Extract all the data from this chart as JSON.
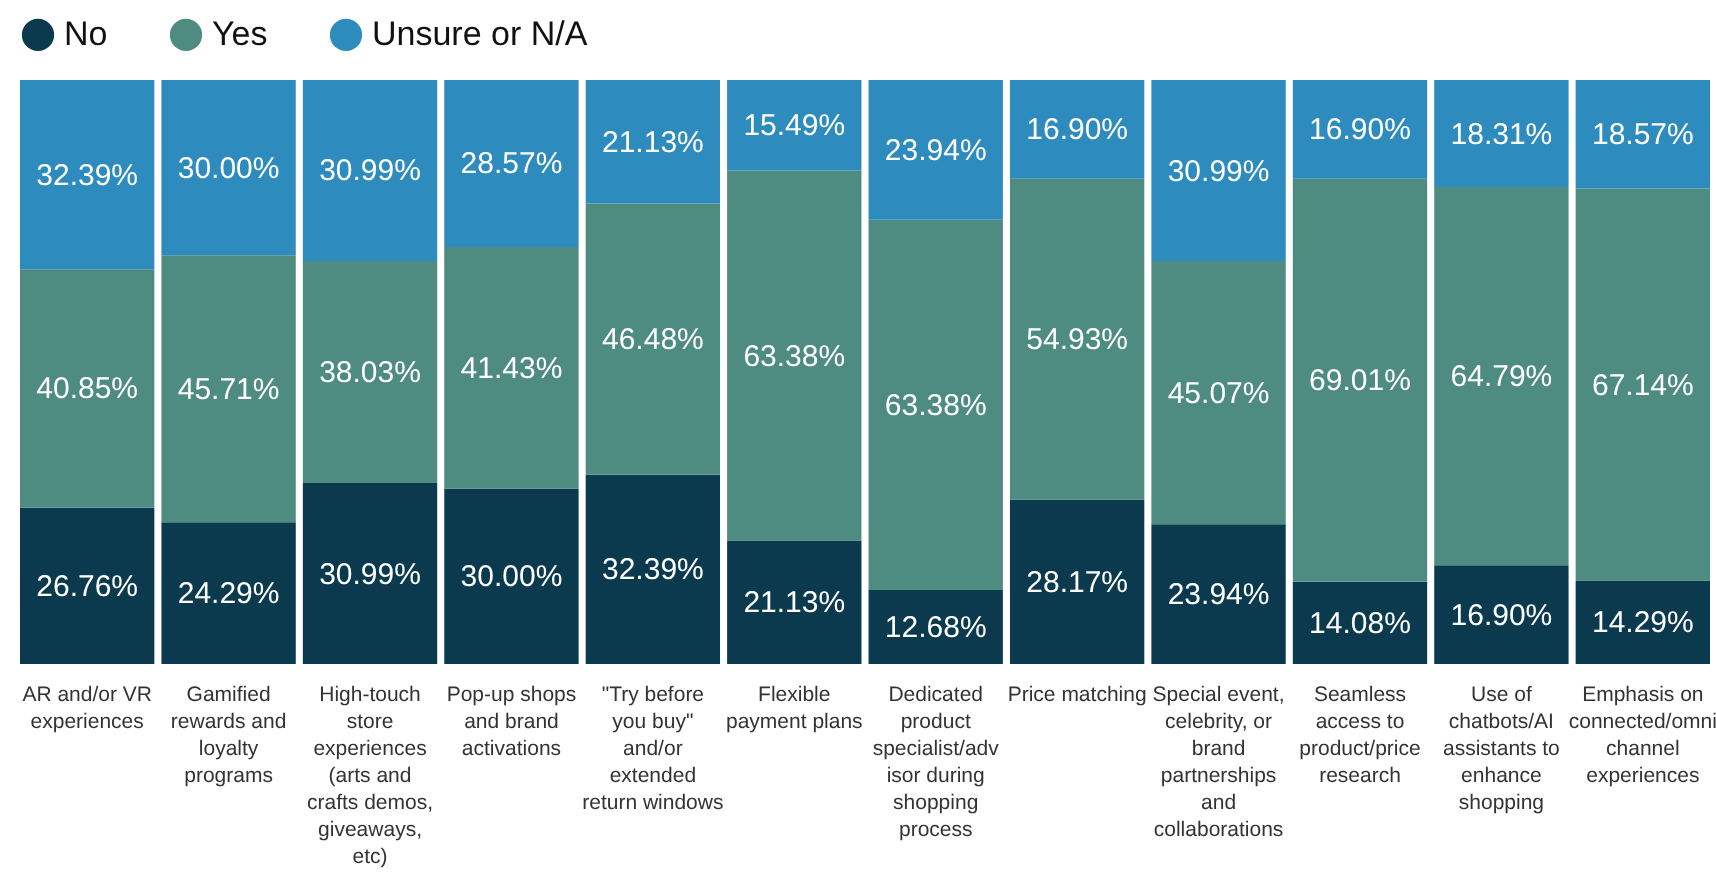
{
  "chart_data": {
    "type": "bar",
    "stacked": true,
    "legend": "top",
    "grid": false,
    "tick_labels": "x",
    "categories": [
      "AR and/or VR experiences",
      "Gamified rewards and loyalty programs",
      "High-touch store experiences (arts and crafts demos, giveaways, etc)",
      "Pop-up shops and brand activations",
      "\"Try before you buy\" and/or extended return windows",
      "Flexible payment plans",
      "Dedicated product specialist/advisor during shopping process",
      "Price matching",
      "Special event, celebrity, or brand partnerships and collaborations",
      "Seamless access to product/price research",
      "Use of chatbots/AI assistants to enhance shopping",
      "Emphasis on connected/omnichannel experiences"
    ],
    "series": [
      {
        "name": "No",
        "color": "#0b3a4f",
        "values": [
          26.76,
          24.29,
          30.99,
          30.0,
          32.39,
          21.13,
          12.68,
          28.17,
          23.94,
          14.08,
          16.9,
          14.29
        ],
        "value_labels": [
          "26.76%",
          "24.29%",
          "30.99%",
          "30.00%",
          "32.39%",
          "21.13%",
          "12.68%",
          "28.17%",
          "23.94%",
          "14.08%",
          "16.90%",
          "14.29%"
        ]
      },
      {
        "name": "Yes",
        "color": "#4e8b80",
        "values": [
          40.85,
          45.71,
          38.03,
          41.43,
          46.48,
          63.38,
          63.38,
          54.93,
          45.07,
          69.01,
          64.79,
          67.14
        ],
        "value_labels": [
          "40.85%",
          "45.71%",
          "38.03%",
          "41.43%",
          "46.48%",
          "63.38%",
          "63.38%",
          "54.93%",
          "45.07%",
          "69.01%",
          "64.79%",
          "67.14%"
        ]
      },
      {
        "name": "Unsure or N/A",
        "color": "#2e8bbd",
        "values": [
          32.39,
          30.0,
          30.99,
          28.57,
          21.13,
          15.49,
          23.94,
          16.9,
          30.99,
          16.9,
          18.31,
          18.57
        ],
        "value_labels": [
          "32.39%",
          "30.00%",
          "30.99%",
          "28.57%",
          "21.13%",
          "15.49%",
          "23.94%",
          "16.90%",
          "30.99%",
          "16.90%",
          "18.31%",
          "18.57%"
        ]
      }
    ]
  }
}
